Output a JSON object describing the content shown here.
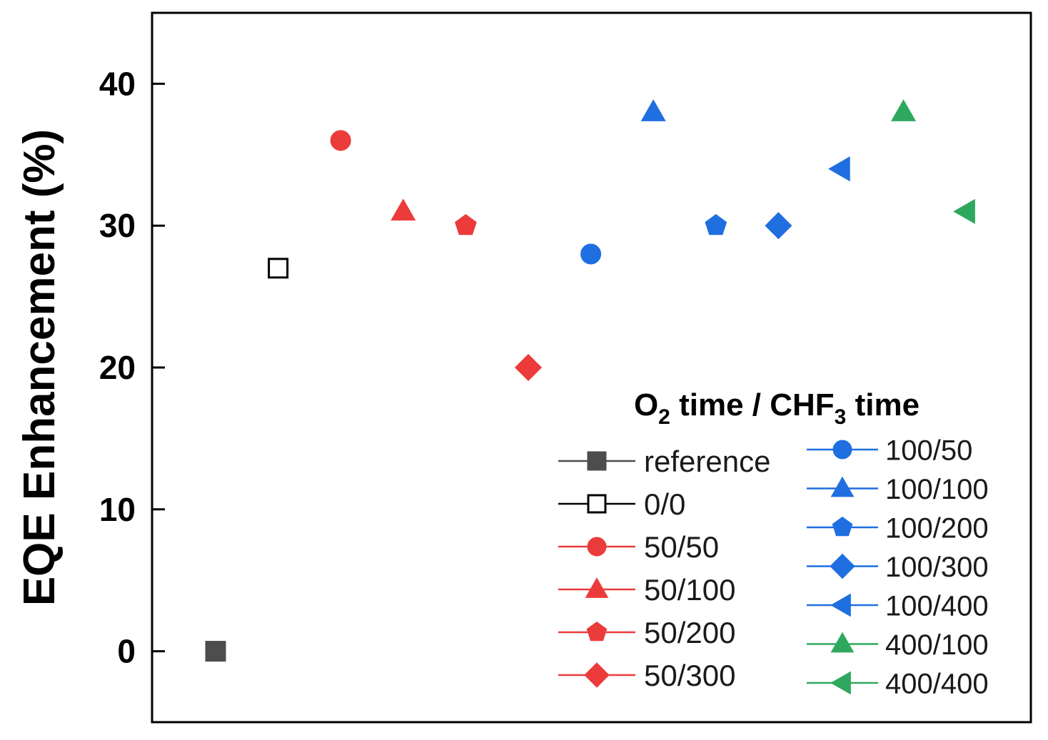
{
  "chart_data": {
    "type": "scatter",
    "xlabel": "",
    "ylabel": "EQE Enhancement (%)",
    "ylim": [
      -5,
      45
    ],
    "yticks": [
      0,
      10,
      20,
      30,
      40
    ],
    "ytick_labels": [
      "0",
      "10",
      "20",
      "30",
      "40"
    ],
    "grid": false,
    "x_tick_labels_visible": false,
    "legend": {
      "placement": "bottom-right",
      "title_parts": [
        "O",
        "2",
        " time / CHF",
        "3",
        " time"
      ],
      "columns": 2
    },
    "series": [
      {
        "name": "reference",
        "x": 1,
        "y": 0,
        "marker": "square",
        "filled": true,
        "color": "#4d4d4d"
      },
      {
        "name": "0/0",
        "x": 2,
        "y": 27,
        "marker": "square",
        "filled": false,
        "color": "#000000"
      },
      {
        "name": "50/50",
        "x": 3,
        "y": 36,
        "marker": "circle",
        "filled": true,
        "color": "#ec3b3b"
      },
      {
        "name": "50/100",
        "x": 4,
        "y": 31,
        "marker": "triangle-up",
        "filled": true,
        "color": "#ec3b3b"
      },
      {
        "name": "50/200",
        "x": 5,
        "y": 30,
        "marker": "pentagon",
        "filled": true,
        "color": "#ec3b3b"
      },
      {
        "name": "50/300",
        "x": 6,
        "y": 20,
        "marker": "diamond",
        "filled": true,
        "color": "#ec3b3b"
      },
      {
        "name": "100/50",
        "x": 7,
        "y": 28,
        "marker": "circle",
        "filled": true,
        "color": "#1f6fe0"
      },
      {
        "name": "100/100",
        "x": 8,
        "y": 38,
        "marker": "triangle-up",
        "filled": true,
        "color": "#1f6fe0"
      },
      {
        "name": "100/200",
        "x": 9,
        "y": 30,
        "marker": "pentagon",
        "filled": true,
        "color": "#1f6fe0"
      },
      {
        "name": "100/300",
        "x": 10,
        "y": 30,
        "marker": "diamond",
        "filled": true,
        "color": "#1f6fe0"
      },
      {
        "name": "100/400",
        "x": 11,
        "y": 34,
        "marker": "triangle-left",
        "filled": true,
        "color": "#1f6fe0"
      },
      {
        "name": "400/100",
        "x": 12,
        "y": 38,
        "marker": "triangle-up",
        "filled": true,
        "color": "#2fa85f"
      },
      {
        "name": "400/400",
        "x": 13,
        "y": 31,
        "marker": "triangle-left",
        "filled": true,
        "color": "#2fa85f"
      }
    ]
  }
}
